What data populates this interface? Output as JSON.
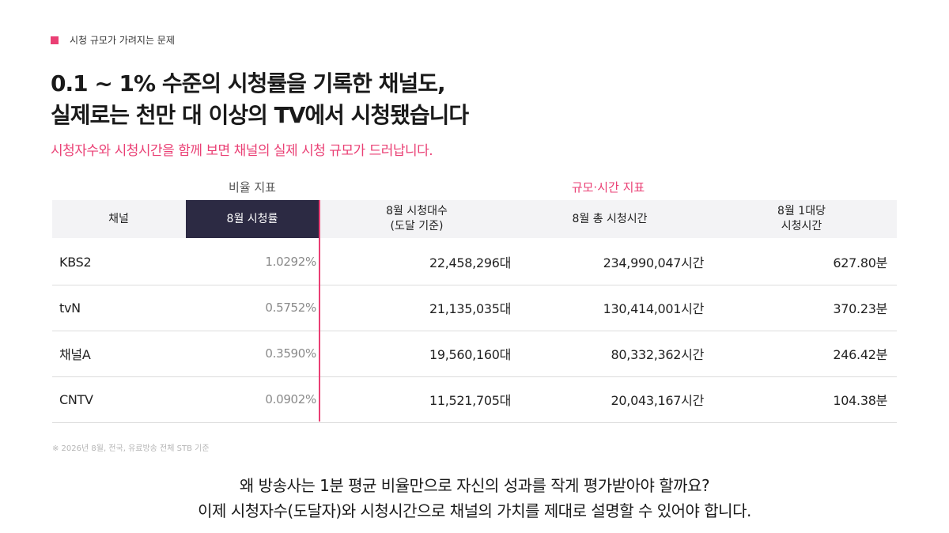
{
  "section": {
    "label": "시청 규모가 가려지는 문제"
  },
  "headline": {
    "line1": "0.1 ~ 1% 수준의 시청률을 기록한 채널도,",
    "line2": "실제로는 천만 대 이상의 TV에서 시청됐습니다"
  },
  "subline": "시청자수와 시청시간을 함께 보면 채널의 실제 시청 규모가 드러납니다.",
  "groups": {
    "ratio": "비율 지표",
    "scale": "규모·시간 지표"
  },
  "columns": {
    "channel": "채널",
    "rating": "8월 시청률",
    "devices_l1": "8월 시청대수",
    "devices_l2": "(도달 기준)",
    "total_time": "8월 총 시청시간",
    "per_device_l1": "8월 1대당",
    "per_device_l2": "시청시간"
  },
  "rows": [
    {
      "channel": "KBS2",
      "rating": "1.0292%",
      "devices": "22,458,296대",
      "total_time": "234,990,047시간",
      "per_device": "627.80분"
    },
    {
      "channel": "tvN",
      "rating": "0.5752%",
      "devices": "21,135,035대",
      "total_time": "130,414,001시간",
      "per_device": "370.23분"
    },
    {
      "channel": "채널A",
      "rating": "0.3590%",
      "devices": "19,560,160대",
      "total_time": "80,332,362시간",
      "per_device": "246.42분"
    },
    {
      "channel": "CNTV",
      "rating": "0.0902%",
      "devices": "11,521,705대",
      "total_time": "20,043,167시간",
      "per_device": "104.38분"
    }
  ],
  "footnote": "※ 2026년 8월, 전국, 유료방송 전체 STB 기준",
  "closing": {
    "line1": "왜 방송사는 1분 평균 비율만으로 자신의 성과를 작게 평가받아야 할까요?",
    "line2": "이제 시청자수(도달자)와 시청시간으로 채널의 가치를 제대로 설명할 수 있어야 합니다."
  },
  "colors": {
    "accent": "#ea3f74",
    "header_highlight": "#2c2a43",
    "header_bg": "#f3f3f5"
  }
}
